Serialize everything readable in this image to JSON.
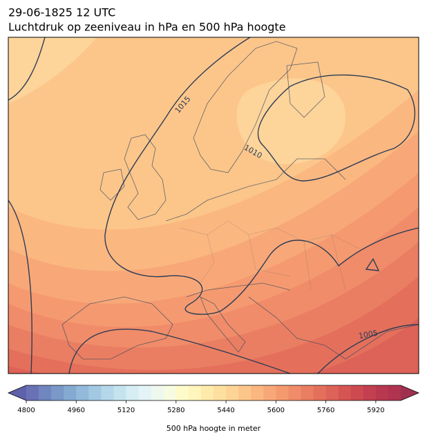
{
  "title": "29-06-1825 12 UTC",
  "subtitle": "Luchtdruk op zeeniveau in hPa en 500 hPa hoogte",
  "contour_labels": [
    1015,
    1010,
    1005
  ],
  "colorbar": {
    "label": "500 hPa hoogte in meter",
    "lim": [
      4800,
      6000
    ],
    "ticks": [
      4800,
      4960,
      5120,
      5280,
      5440,
      5600,
      5760,
      5920
    ],
    "under_color": "#5e62aa",
    "over_color": "#a0304f",
    "colors": [
      "#6a72b6",
      "#6f86bf",
      "#7a98c8",
      "#85aad2",
      "#93badb",
      "#a3c9e2",
      "#b4d7ea",
      "#c5e3ef",
      "#d6edf4",
      "#e4f3f6",
      "#eef8ee",
      "#f7fbdf",
      "#fefbcb",
      "#fff5bd",
      "#feebab",
      "#fde09f",
      "#fdd495",
      "#fcc68a",
      "#fbb780",
      "#f8a878",
      "#f59a70",
      "#f08c69",
      "#ea7e62",
      "#e4705c",
      "#dd6257",
      "#d55552",
      "#cc4a50",
      "#c2404f",
      "#b8384f",
      "#b0334f"
    ]
  }
}
